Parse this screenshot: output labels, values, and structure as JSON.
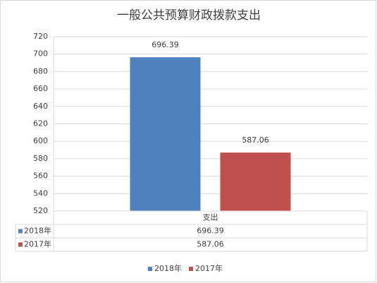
{
  "chart_data": {
    "type": "bar",
    "title": "一般公共预算财政拨款支出",
    "categories": [
      "支出"
    ],
    "series": [
      {
        "name": "2018年",
        "color": "#4f81bd",
        "values": [
          696.39
        ]
      },
      {
        "name": "2017年",
        "color": "#c0504d",
        "values": [
          587.06
        ]
      }
    ],
    "ylim": [
      520,
      720
    ],
    "yticks": [
      520,
      540,
      560,
      580,
      600,
      620,
      640,
      660,
      680,
      700,
      720
    ],
    "grid": true,
    "data_labels": true,
    "data_table": true,
    "legend": "bottom"
  }
}
